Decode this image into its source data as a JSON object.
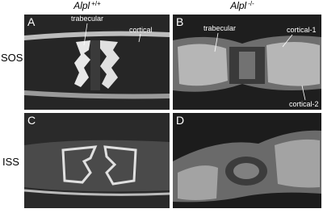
{
  "columns": [
    {
      "gene": "Alpl",
      "genotype": "+/+"
    },
    {
      "gene": "Alpl",
      "genotype": "-/-"
    }
  ],
  "rows": [
    "SOS",
    "ISS"
  ],
  "panels": [
    {
      "letter": "A",
      "labels": [
        "trabecular",
        "cortical"
      ]
    },
    {
      "letter": "B",
      "labels": [
        "trabecular",
        "cortical-1",
        "cortical-2"
      ]
    },
    {
      "letter": "C"
    },
    {
      "letter": "D"
    }
  ]
}
